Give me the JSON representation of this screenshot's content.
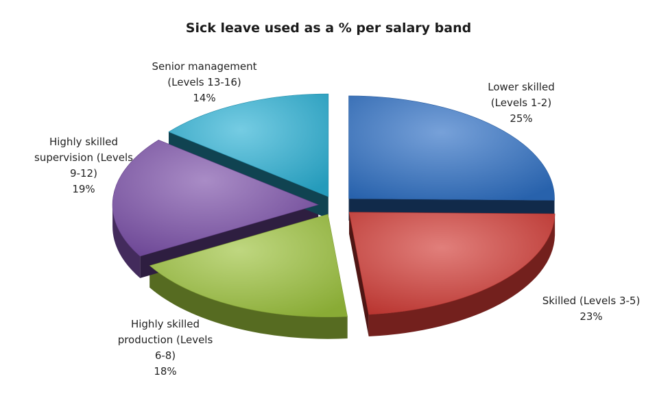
{
  "chart_data": {
    "type": "pie",
    "title": "Sick leave used as a % per salary band",
    "slices": [
      {
        "label_lines": [
          "Lower skilled",
          "(Levels 1-2)"
        ],
        "value": 25,
        "value_label": "25%",
        "color": "#2E6FC4"
      },
      {
        "label_lines": [
          "Skilled (Levels 3-5)"
        ],
        "value": 23,
        "value_label": "23%",
        "color": "#D13A34"
      },
      {
        "label_lines": [
          "Highly skilled",
          "production (Levels",
          "6-8)"
        ],
        "value": 18,
        "value_label": "18%",
        "color": "#9CC23C"
      },
      {
        "label_lines": [
          "Highly skilled",
          "supervision (Levels",
          "9-12)"
        ],
        "value": 19,
        "value_label": "19%",
        "color": "#7A4EA8"
      },
      {
        "label_lines": [
          "Senior management",
          "(Levels 13-16)"
        ],
        "value": 14,
        "value_label": "14%",
        "color": "#2AB0D4"
      }
    ],
    "legend": "none",
    "style": "3d-exploded"
  }
}
